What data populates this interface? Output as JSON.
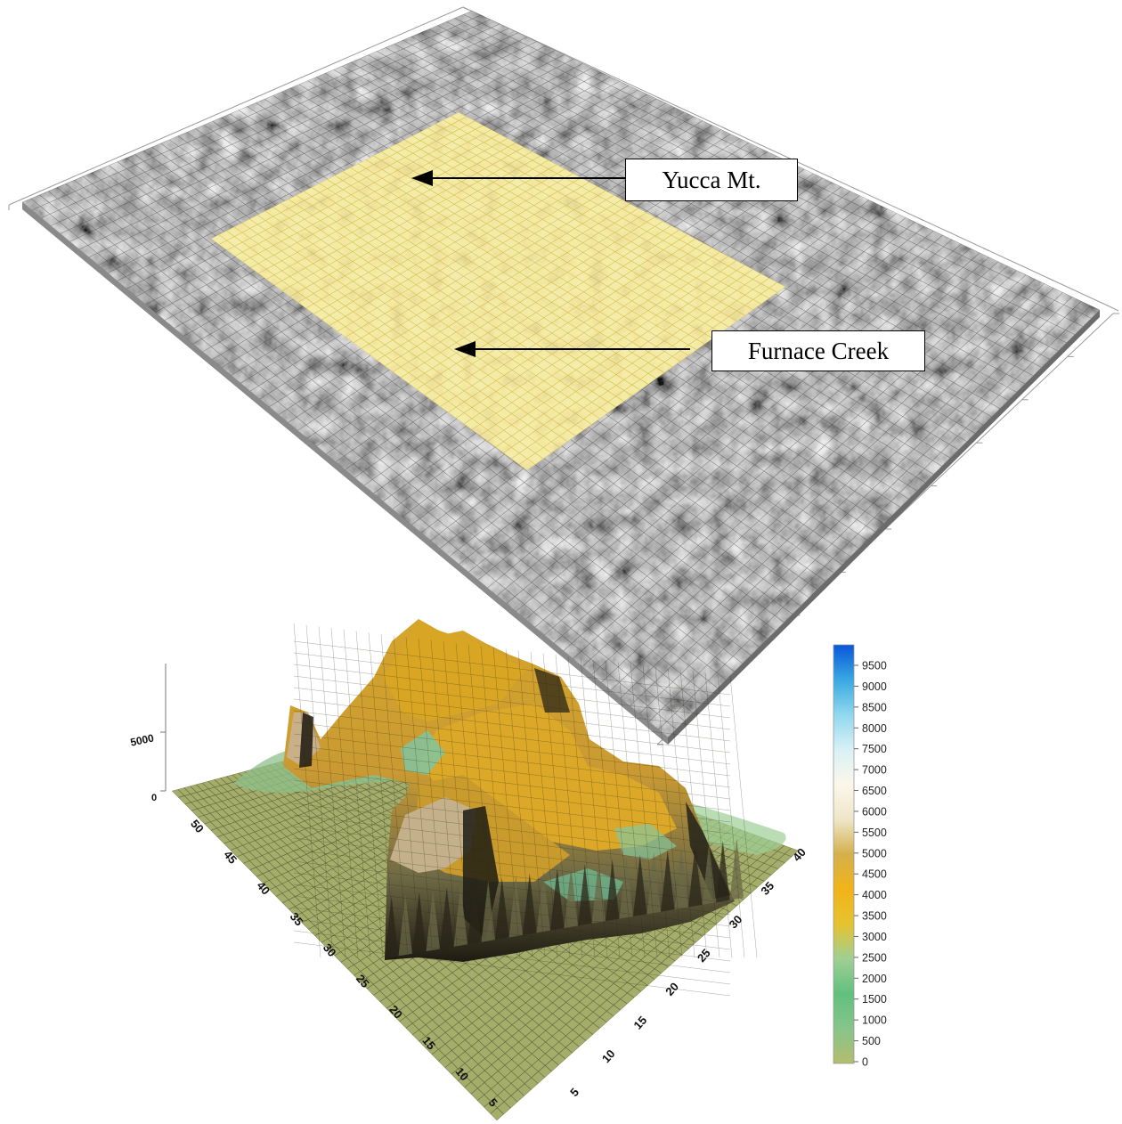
{
  "upper_map": {
    "labels": {
      "yucca": "Yucca Mt.",
      "furnace": "Furnace Creek"
    },
    "colors": {
      "terrain": "#7d7d7d",
      "highlight": "#e6d495",
      "grid_gray": "#3a3a3a",
      "grid_yellow": "#c9b23a"
    }
  },
  "lower_surface": {
    "z_tick": "5000",
    "z_zero": "0",
    "left_axis_ticks": [
      "5",
      "10",
      "15",
      "20",
      "25",
      "30",
      "35",
      "40",
      "45",
      "50"
    ],
    "right_axis_ticks": [
      "5",
      "10",
      "15",
      "20",
      "25",
      "30",
      "35",
      "40"
    ],
    "colors": {
      "base": "#a4ad6a",
      "grid": "#2d3320"
    }
  },
  "colorbar": {
    "ticks": [
      "9500",
      "9000",
      "8500",
      "8000",
      "7500",
      "7000",
      "6500",
      "6000",
      "5500",
      "5000",
      "4500",
      "4000",
      "3500",
      "3000",
      "2500",
      "2000",
      "1500",
      "1000",
      "500",
      "0"
    ],
    "stops": [
      "#b4bd6e",
      "#86c58a",
      "#61c07e",
      "#9fcf93",
      "#e6c230",
      "#f0b418",
      "#d4b04c",
      "#efe6c8",
      "#fbf7ea",
      "#d8f1f6",
      "#90d8ee",
      "#38a8e2",
      "#0a56d8"
    ]
  }
}
